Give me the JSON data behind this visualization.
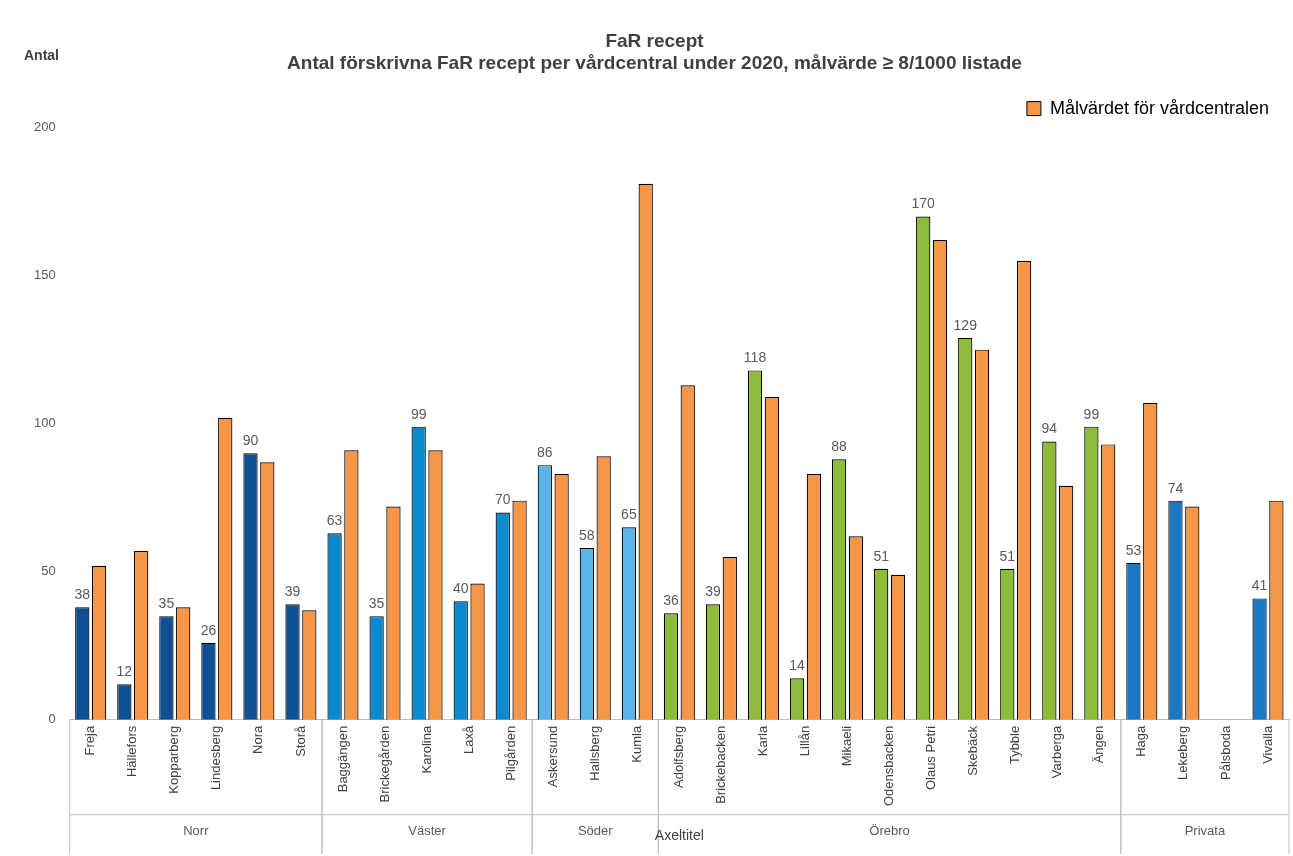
{
  "chart_data": {
    "type": "bar",
    "title": "FaR recept",
    "subtitle": "Antal förskrivna FaR recept per vårdcentral under 2020, målvärde ≥ 8/1000 listade",
    "ylabel": "Antal",
    "xlabel": "Axeltitel",
    "categories": [
      "Freja",
      "Hällefors",
      "Kopparberg",
      "Lindesberg",
      "Nora",
      "Storå",
      "Baggängen",
      "Brickegården",
      "Karolina",
      "Laxå",
      "Pilgården",
      "Askersund",
      "Hallsberg",
      "Kumla",
      "Adolfsberg",
      "Brickebacken",
      "Karla",
      "Lillån",
      "Mikaeli",
      "Odensbacken",
      "Olaus Petri",
      "Skebäck",
      "Tybble",
      "Varberga",
      "Ängen",
      "Haga",
      "Lekeberg",
      "Pålsboda",
      "Vivalla"
    ],
    "series": [
      {
        "colors": [
          "#0f4f96",
          "#0f4f96",
          "#0f4f96",
          "#0f4f96",
          "#0f4f96",
          "#0f4f96",
          "#0b8ad0",
          "#0b8ad0",
          "#0b8ad0",
          "#0b8ad0",
          "#0b8ad0",
          "#5ab4e6",
          "#5ab4e6",
          "#5ab4e6",
          "#8dbb3a",
          "#8dbb3a",
          "#8dbb3a",
          "#8dbb3a",
          "#8dbb3a",
          "#8dbb3a",
          "#8dbb3a",
          "#8dbb3a",
          "#8dbb3a",
          "#8dbb3a",
          "#8dbb3a",
          "#1a78c2",
          "#1a78c2",
          "#1a78c2",
          "#1a78c2"
        ],
        "values": [
          38,
          12,
          35,
          26,
          90,
          39,
          63,
          35,
          99,
          40,
          70,
          86,
          58,
          65,
          36,
          39,
          118,
          14,
          88,
          51,
          170,
          129,
          51,
          94,
          99,
          53,
          74,
          null,
          41
        ],
        "value_labels": [
          "38",
          "12",
          "35",
          "26",
          "90",
          "39",
          "63",
          "35",
          "99",
          "40",
          "70",
          "86",
          "58",
          "65",
          "36",
          "39",
          "118",
          "14",
          "88",
          "51",
          "170",
          "129",
          "51",
          "94",
          "99",
          "53",
          "74",
          null,
          "41"
        ]
      },
      {
        "name": "Målvärdet för vårdcentralen",
        "color": "#f79646",
        "values": [
          52,
          57,
          38,
          102,
          87,
          37,
          91,
          72,
          91,
          46,
          74,
          83,
          89,
          181,
          113,
          55,
          109,
          83,
          62,
          49,
          162,
          125,
          155,
          79,
          93,
          107,
          72,
          null,
          74
        ]
      }
    ],
    "ylim": [
      0,
      200
    ],
    "yticks": [
      0,
      50,
      100,
      150,
      200
    ],
    "grid": false,
    "legend": "top right",
    "annotations": [
      "Norr",
      "Väster",
      "Söder",
      "Örebro",
      "Privata"
    ]
  }
}
